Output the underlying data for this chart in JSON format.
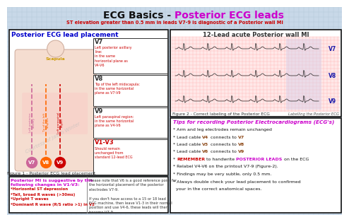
{
  "title_black": "ECG Basics - ",
  "title_magenta": "Posterior ECG leads",
  "subtitle": "ST elevation greater than 0.5 mm in leads V7-9 is diagnostic of a Posterior wall MI",
  "bg_color": "#c8d8e8",
  "grid_color": "#b0c8d8",
  "panel1_title": "Posterior ECG lead placement",
  "panel1_title_color": "#0000cc",
  "panel2_title": "12-Lead acute Posterior wall MI",
  "panel2_title_color": "#333333",
  "v7_title": "V7",
  "v7_desc": "Left posterior axillary\nline:\nin the same\nhorizontal plane as\nV4-V6",
  "v8_title": "V8",
  "v8_desc": "Tip of the left midscapula:\nin the same horizontal\nplane as V7-V9",
  "v9_title": "V9",
  "v9_desc": "Left paraspinal region:\nin the same horizontal\nplane as V4-V6",
  "v1v3_title": "V1-V3",
  "v1v3_desc": "Should remain\nunchanged from\nstandard 12-lead ECG",
  "v1v3_color": "#cc0000",
  "fig1_caption": "Figure 1 - Posterior ECG lead placement",
  "fig2_caption": "Figure 2 - Correct labeling of the Posterior ECG",
  "fig2_sub": "Labelling the Posterior ECG",
  "panel3_title": "Posterior MI is suggestive by the\nfollowing changes in V1-V3:",
  "panel3_title_color": "#cc00cc",
  "panel3_items": [
    "*Horizontal ST depression",
    "*Tall, broad R waves (>30ms)",
    "*Upright T waves",
    "*Dominant R wave (R/S ratio >1) in V2"
  ],
  "panel3_items_color": "#cc0000",
  "panel3_right_text1": "Please note that V6 is a good reference point for",
  "panel3_right_text2": "the horizontal placement of the posterior",
  "panel3_right_text3": "electrodes V7-9.",
  "panel3_right_text4": "If you don't have access to a 15 or 18 lead",
  "panel3_right_text5": "ECG machine, then leave V1-3 in their normal",
  "panel3_right_text6": "position and use V4-6, these leads will then",
  "panel3_right_text7": "become V7-9.",
  "tips_title": "Tips for recording Posterior Electrocardiograms (ECG's)",
  "tips_title_color": "#cc00cc",
  "button_v7_color": "#cc6699",
  "button_v8_color": "#ff6600",
  "button_v9_color": "#cc0000",
  "scapula_color": "#cc9900",
  "watermark": "Courtesy of Jason Winter"
}
